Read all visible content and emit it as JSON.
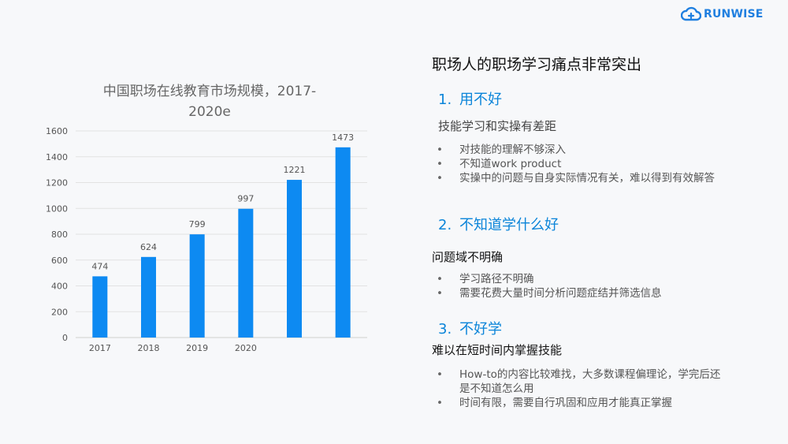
{
  "brand": {
    "logo_text": "RUNWISE",
    "accent": "#1f7fe0"
  },
  "chart_data": {
    "type": "bar",
    "title_line1": "中国职场在线教育市场规模，2017-",
    "title_line2": "2020e",
    "categories": [
      "2017",
      "2018",
      "2019",
      "2020",
      "",
      ""
    ],
    "values": [
      474,
      624,
      799,
      997,
      1221,
      1473
    ],
    "ylim": [
      0,
      1600
    ],
    "yticks": [
      "0",
      "200",
      "400",
      "600",
      "800",
      "1000",
      "1200",
      "1400",
      "1600"
    ],
    "bar_color": "#0d8af2",
    "grid": true,
    "data_labels": true
  },
  "panel": {
    "main_title": "职场人的职场学习痛点非常突出",
    "sections": [
      {
        "num": "1.",
        "title": "用不好",
        "subhead": "技能学习和实操有差距",
        "bullets": [
          "对技能的理解不够深入",
          "不知道work product",
          "实操中的问题与自身实际情况有关，难以得到有效解答"
        ]
      },
      {
        "num": "2.",
        "title": "不知道学什么好",
        "subhead": "问题域不明确",
        "bullets": [
          "学习路径不明确",
          "需要花费大量时间分析问题症结并筛选信息"
        ]
      },
      {
        "num": "3.",
        "title": "不好学",
        "subhead": "难以在短时间内掌握技能",
        "bullets": [
          "How-to的内容比较难找，大多数课程偏理论，学完后还",
          "是不知道怎么用",
          "时间有限，需要自行巩固和应用才能真正掌握"
        ]
      }
    ]
  }
}
